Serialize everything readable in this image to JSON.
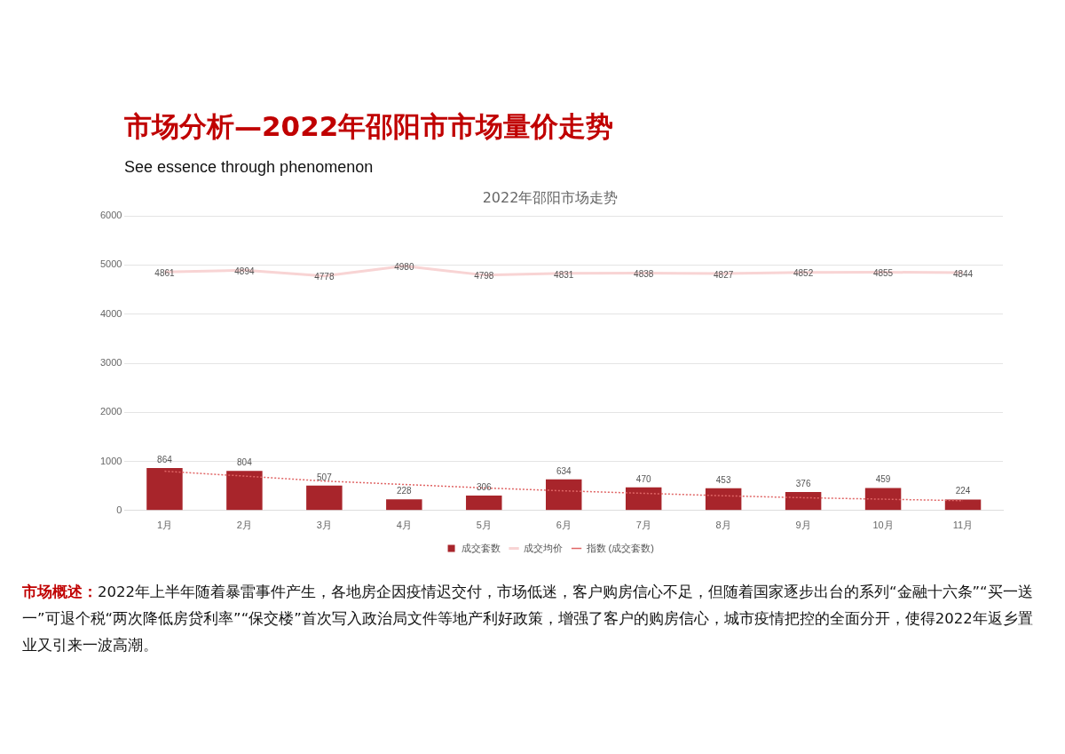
{
  "chart_data": {
    "type": "bar",
    "title": "市场分析—2022年邵阳市市场量价走势",
    "subtitle": "See essence through phenomenon",
    "annotations": [
      "2022年邵阳市场走势",
      "市场概述：",
      "2022年上半年随着暴雷事件产生，各地房企因疫情迟交付，市场低迷，客户购房信心不足，但随着国家逐步出台的系列“金融十六条”“买一送一”可退个税“两次降低房贷利率”“保交楼”首次写入政治局文件等地产利好政策，增强了客户的购房信心，城市疫情把控的全面分开，使得2022年返乡置业又引来一波高潮。"
    ],
    "categories": [
      "1月",
      "2月",
      "3月",
      "4月",
      "5月",
      "6月",
      "7月",
      "8月",
      "9月",
      "10月",
      "11月"
    ],
    "series": [
      {
        "name": "成交套数",
        "color": "#a8252b",
        "values": [
          864,
          804,
          507,
          228,
          306,
          634,
          470,
          453,
          376,
          459,
          224
        ],
        "value_labels": [
          "864",
          "804",
          "507",
          "228",
          "306",
          "634",
          "470",
          "453",
          "376",
          "459",
          "224"
        ]
      },
      {
        "name": "成交均价",
        "type": "line",
        "color": "#f8d4d4",
        "line_style": "solid",
        "values": [
          4861,
          4894,
          4778,
          4980,
          4798,
          4831,
          4838,
          4827,
          4852,
          4855,
          4844
        ],
        "value_labels": [
          "4861",
          "4894",
          "4778",
          "4980",
          "4798",
          "4831",
          "4838",
          "4827",
          "4852",
          "4855",
          "4844"
        ]
      },
      {
        "name": "指数 (成交套数)",
        "type": "line",
        "color": "#e06666",
        "line_style": "dotted",
        "values": [
          800,
          700,
          600,
          530,
          460,
          400,
          350,
          300,
          260,
          230,
          200
        ]
      }
    ],
    "ylim": [
      0,
      6000
    ],
    "yticks": [
      0,
      1000,
      2000,
      3000,
      4000,
      5000,
      6000
    ],
    "grid": "y",
    "legend": "bottom",
    "marker": "none"
  }
}
